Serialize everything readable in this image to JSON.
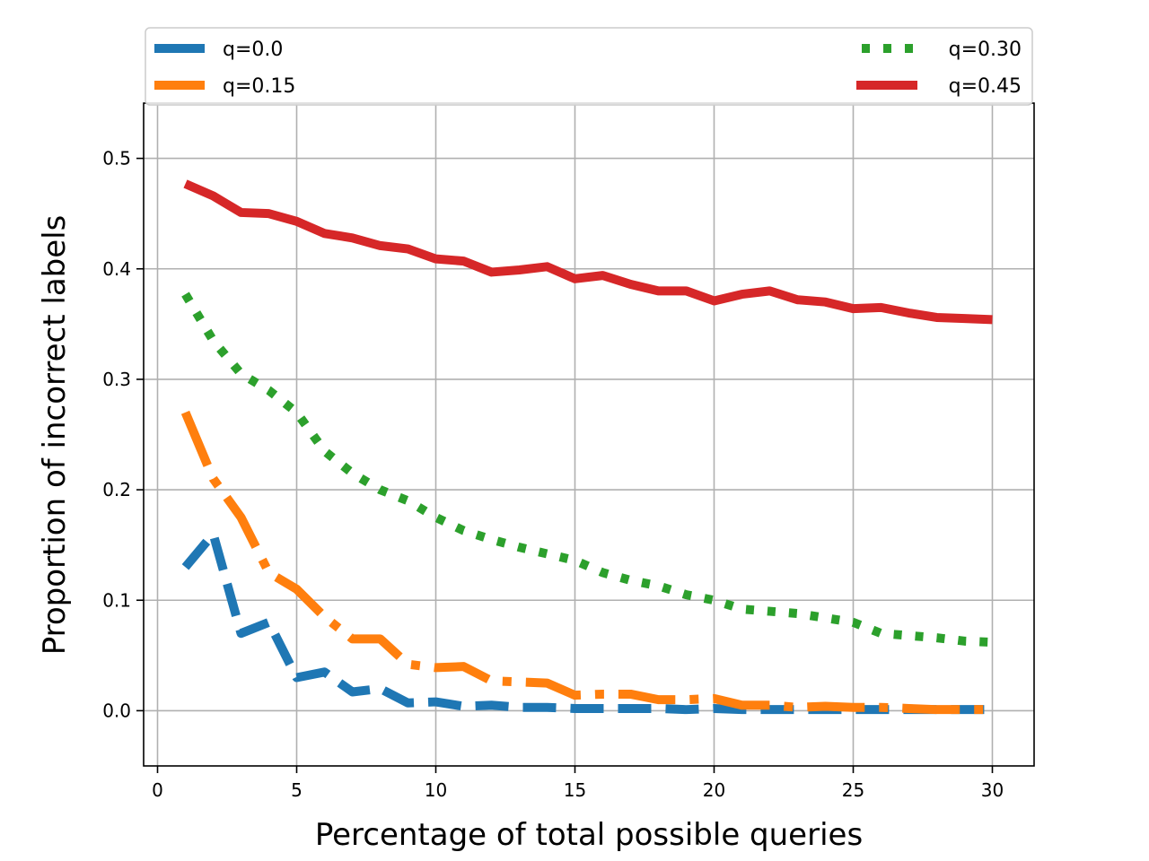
{
  "chart_data": {
    "type": "line",
    "title": "",
    "xlabel": "Percentage of total possible queries",
    "ylabel": "Proportion of incorrect labels",
    "xlim": [
      -0.5,
      31.5
    ],
    "ylim": [
      -0.05,
      0.55
    ],
    "grid": true,
    "xticks": [
      0,
      5,
      10,
      15,
      20,
      25,
      30
    ],
    "xtick_labels": [
      "0",
      "5",
      "10",
      "15",
      "20",
      "25",
      "30"
    ],
    "yticks": [
      0.0,
      0.1,
      0.2,
      0.3,
      0.4,
      0.5
    ],
    "ytick_labels": [
      "0.0",
      "0.1",
      "0.2",
      "0.3",
      "0.4",
      "0.5"
    ],
    "legend_position": "top",
    "x": [
      1,
      2,
      3,
      4,
      5,
      6,
      7,
      8,
      9,
      10,
      11,
      12,
      13,
      14,
      15,
      16,
      17,
      18,
      19,
      20,
      21,
      22,
      23,
      24,
      25,
      26,
      27,
      28,
      29,
      30
    ],
    "series": [
      {
        "name": "q=0.0",
        "color": "#1f77b4",
        "style": "dashed",
        "values": [
          0.13,
          0.16,
          0.07,
          0.08,
          0.03,
          0.035,
          0.017,
          0.02,
          0.007,
          0.008,
          0.004,
          0.005,
          0.003,
          0.003,
          0.002,
          0.002,
          0.002,
          0.002,
          0.001,
          0.002,
          0.001,
          0.001,
          0.001,
          0.001,
          0.001,
          0.001,
          0.001,
          0.001,
          0.001,
          0.001
        ]
      },
      {
        "name": "q=0.15",
        "color": "#ff7f0e",
        "style": "dashdot",
        "values": [
          0.27,
          0.21,
          0.175,
          0.125,
          0.11,
          0.085,
          0.065,
          0.065,
          0.042,
          0.039,
          0.04,
          0.027,
          0.026,
          0.025,
          0.014,
          0.015,
          0.015,
          0.01,
          0.01,
          0.011,
          0.005,
          0.005,
          0.003,
          0.004,
          0.003,
          0.003,
          0.002,
          0.001,
          0.001,
          0.001
        ]
      },
      {
        "name": "q=0.30",
        "color": "#2ca02c",
        "style": "dotted",
        "values": [
          0.377,
          0.335,
          0.305,
          0.29,
          0.27,
          0.235,
          0.215,
          0.2,
          0.19,
          0.175,
          0.163,
          0.155,
          0.148,
          0.142,
          0.136,
          0.125,
          0.118,
          0.113,
          0.105,
          0.1,
          0.092,
          0.09,
          0.088,
          0.084,
          0.08,
          0.07,
          0.068,
          0.066,
          0.063,
          0.062
        ]
      },
      {
        "name": "q=0.45",
        "color": "#d62728",
        "style": "solid",
        "values": [
          0.477,
          0.466,
          0.451,
          0.45,
          0.443,
          0.432,
          0.428,
          0.421,
          0.418,
          0.409,
          0.407,
          0.397,
          0.399,
          0.402,
          0.391,
          0.394,
          0.386,
          0.38,
          0.38,
          0.371,
          0.377,
          0.38,
          0.372,
          0.37,
          0.364,
          0.365,
          0.36,
          0.356,
          0.355,
          0.354
        ]
      }
    ]
  }
}
